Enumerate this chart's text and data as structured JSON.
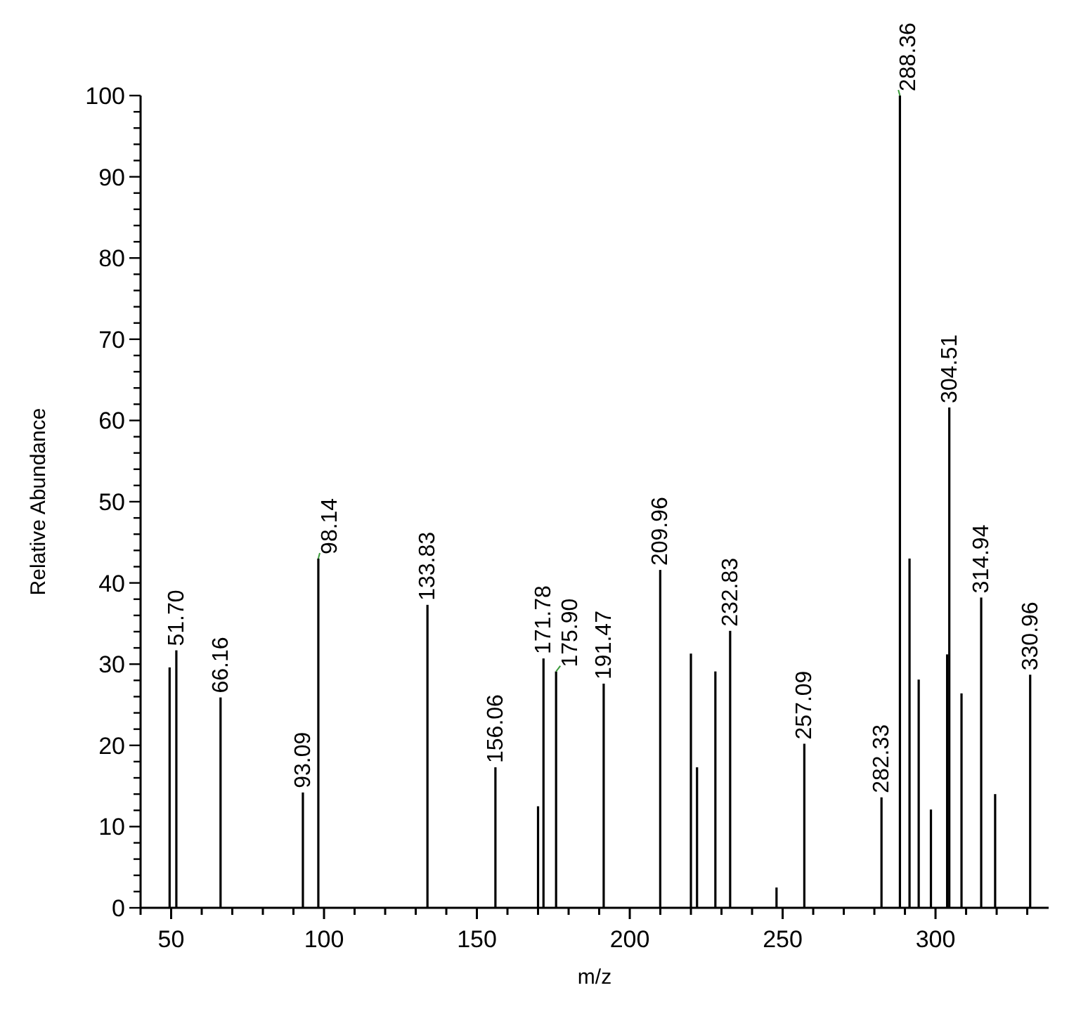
{
  "chart_data": {
    "type": "bar",
    "xlabel": "m/z",
    "ylabel": "Relative Abundance",
    "color": "#000000",
    "x": [
      49.5,
      51.7,
      66.16,
      93.09,
      98.14,
      133.83,
      156.06,
      170,
      171.78,
      175.9,
      191.47,
      209.96,
      220,
      222,
      228,
      232.83,
      248,
      257.09,
      282.33,
      288.36,
      291.5,
      294.5,
      298.5,
      303.8,
      304.51,
      308.5,
      314.94,
      319.5,
      330.96
    ],
    "values": [
      29.6,
      31.7,
      25.9,
      14.2,
      43,
      37.3,
      17.3,
      12.5,
      30.7,
      29.1,
      27.6,
      41.6,
      31.3,
      17.3,
      29.1,
      34.1,
      2.5,
      20.2,
      13.6,
      100,
      43,
      28.1,
      12.1,
      31.2,
      61.6,
      26.4,
      38.2,
      14,
      28.7
    ],
    "xlim": [
      40,
      337
    ],
    "ylim": [
      0,
      100
    ],
    "xticks": [
      {
        "value": 40,
        "label": null
      },
      50,
      {
        "value": 60,
        "label": null
      },
      {
        "value": 70,
        "label": null
      },
      {
        "value": 80,
        "label": null
      },
      {
        "value": 90,
        "label": null
      },
      100,
      {
        "value": 110,
        "label": null
      },
      {
        "value": 120,
        "label": null
      },
      {
        "value": 130,
        "label": null
      },
      {
        "value": 140,
        "label": null
      },
      150,
      {
        "value": 160,
        "label": null
      },
      {
        "value": 170,
        "label": null
      },
      {
        "value": 180,
        "label": null
      },
      {
        "value": 190,
        "label": null
      },
      200,
      {
        "value": 210,
        "label": null
      },
      {
        "value": 220,
        "label": null
      },
      {
        "value": 230,
        "label": null
      },
      {
        "value": 240,
        "label": null
      },
      250,
      {
        "value": 260,
        "label": null
      },
      {
        "value": 270,
        "label": null
      },
      {
        "value": 280,
        "label": null
      },
      {
        "value": 290,
        "label": null
      },
      300,
      {
        "value": 310,
        "label": null
      },
      {
        "value": 320,
        "label": null
      },
      {
        "value": 330,
        "label": null
      }
    ],
    "yticks": [
      0,
      {
        "value": 2,
        "label": null
      },
      {
        "value": 4,
        "label": null
      },
      {
        "value": 6,
        "label": null
      },
      {
        "value": 8,
        "label": null
      },
      10,
      {
        "value": 12,
        "label": null
      },
      {
        "value": 14,
        "label": null
      },
      {
        "value": 16,
        "label": null
      },
      {
        "value": 18,
        "label": null
      },
      20,
      {
        "value": 22,
        "label": null
      },
      {
        "value": 24,
        "label": null
      },
      {
        "value": 26,
        "label": null
      },
      {
        "value": 28,
        "label": null
      },
      30,
      {
        "value": 32,
        "label": null
      },
      {
        "value": 34,
        "label": null
      },
      {
        "value": 36,
        "label": null
      },
      {
        "value": 38,
        "label": null
      },
      40,
      {
        "value": 42,
        "label": null
      },
      {
        "value": 44,
        "label": null
      },
      {
        "value": 46,
        "label": null
      },
      {
        "value": 48,
        "label": null
      },
      50,
      {
        "value": 52,
        "label": null
      },
      {
        "value": 54,
        "label": null
      },
      {
        "value": 56,
        "label": null
      },
      {
        "value": 58,
        "label": null
      },
      60,
      {
        "value": 62,
        "label": null
      },
      {
        "value": 64,
        "label": null
      },
      {
        "value": 66,
        "label": null
      },
      {
        "value": 68,
        "label": null
      },
      70,
      {
        "value": 72,
        "label": null
      },
      {
        "value": 74,
        "label": null
      },
      {
        "value": 76,
        "label": null
      },
      {
        "value": 78,
        "label": null
      },
      80,
      {
        "value": 82,
        "label": null
      },
      {
        "value": 84,
        "label": null
      },
      {
        "value": 86,
        "label": null
      },
      {
        "value": 88,
        "label": null
      },
      90,
      {
        "value": 92,
        "label": null
      },
      {
        "value": 94,
        "label": null
      },
      {
        "value": 96,
        "label": null
      },
      {
        "value": 98,
        "label": null
      },
      100
    ],
    "annotations": [
      {
        "text": "51.70",
        "x": 51.7,
        "y": 31.7
      },
      {
        "text": "66.16",
        "x": 66.16,
        "y": 25.9
      },
      {
        "text": "93.09",
        "x": 93.09,
        "y": 14.2
      },
      {
        "text": "98.14",
        "x": 98.14,
        "y": 43
      },
      {
        "text": "133.83",
        "x": 133.83,
        "y": 37.3
      },
      {
        "text": "156.06",
        "x": 156.06,
        "y": 17.3
      },
      {
        "text": "171.78",
        "x": 171.78,
        "y": 30.7
      },
      {
        "text": "175.90",
        "x": 175.9,
        "y": 29.1
      },
      {
        "text": "191.47",
        "x": 191.47,
        "y": 27.6
      },
      {
        "text": "209.96",
        "x": 209.96,
        "y": 41.6
      },
      {
        "text": "232.83",
        "x": 232.83,
        "y": 34.1
      },
      {
        "text": "257.09",
        "x": 257.09,
        "y": 20.2
      },
      {
        "text": "282.33",
        "x": 282.33,
        "y": 13.6
      },
      {
        "text": "288.36",
        "x": 288.36,
        "y": 100
      },
      {
        "text": "304.51",
        "x": 304.51,
        "y": 61.6
      },
      {
        "text": "314.94",
        "x": 314.94,
        "y": 38.2
      },
      {
        "text": "330.96",
        "x": 330.96,
        "y": 28.7
      }
    ]
  }
}
